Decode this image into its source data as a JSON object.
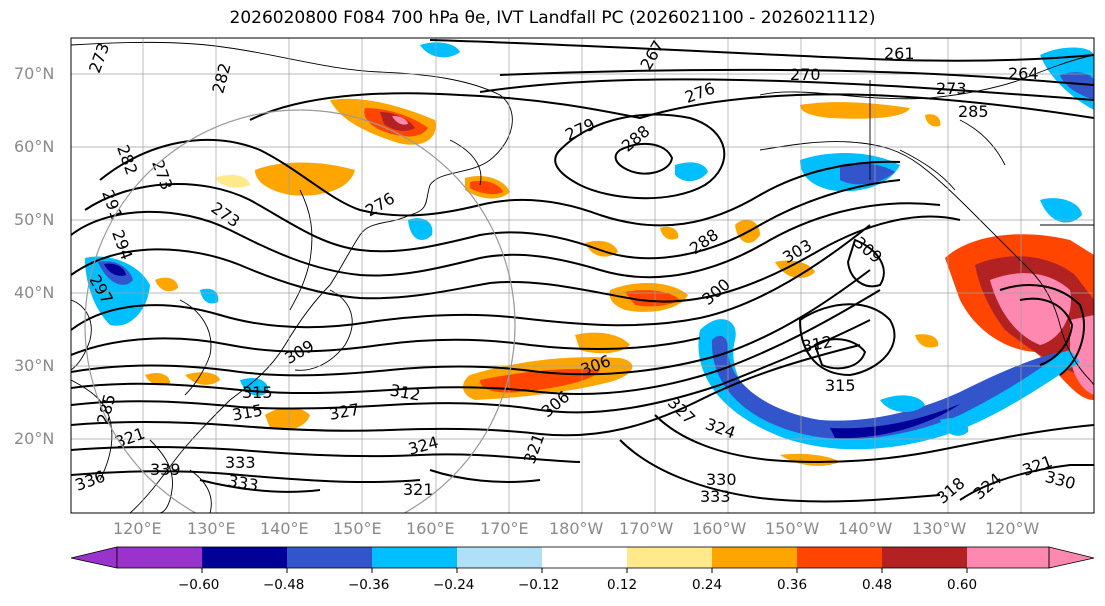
{
  "title": "2026020800 F084 700 hPa θe, IVT Landfall PC (2026021100 - 2026021112)",
  "lat_labels": [
    "70°N",
    "60°N",
    "50°N",
    "40°N",
    "30°N",
    "20°N"
  ],
  "lon_labels": [
    "120°E",
    "130°E",
    "140°E",
    "150°E",
    "160°E",
    "170°E",
    "180°W",
    "170°W",
    "160°W",
    "150°W",
    "140°W",
    "130°W",
    "120°W"
  ],
  "colorbar": {
    "ticks": [
      "−0.60",
      "−0.48",
      "−0.36",
      "−0.24",
      "−0.12",
      "0.12",
      "0.24",
      "0.36",
      "0.48",
      "0.60"
    ],
    "colors": [
      "#9933cc",
      "#000099",
      "#3355cc",
      "#00bfff",
      "#b0e0f8",
      "#ffffff",
      "#ffe98a",
      "#ffa500",
      "#ff4500",
      "#b22222",
      "#ff88b0"
    ]
  },
  "contour_labels": [
    "261",
    "264",
    "267",
    "270",
    "273",
    "276",
    "279",
    "282",
    "285",
    "288",
    "291",
    "294",
    "297",
    "300",
    "303",
    "306",
    "309",
    "312",
    "315",
    "318",
    "321",
    "324",
    "327",
    "330",
    "333",
    "336",
    "339"
  ]
}
